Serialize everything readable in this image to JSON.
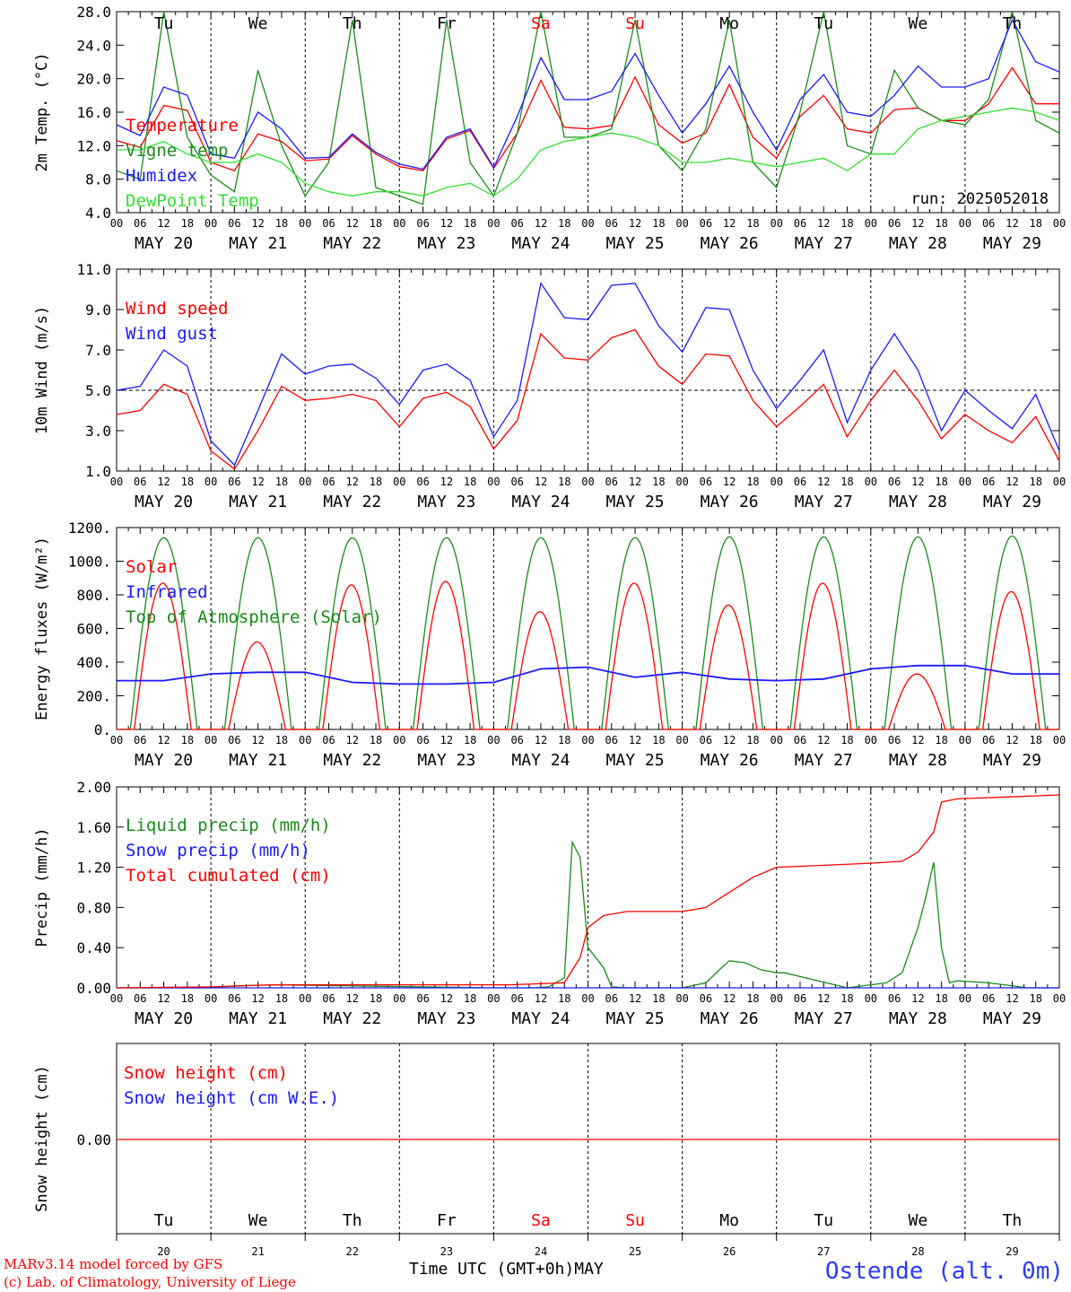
{
  "run_label": "run: 2025052018",
  "day_letters": [
    "Tu",
    "We",
    "Th",
    "Fr",
    "Sa",
    "Su",
    "Mo",
    "Tu",
    "We",
    "Th"
  ],
  "day_letter_colors": [
    "#000000",
    "#000000",
    "#000000",
    "#000000",
    "#ff0000",
    "#ff0000",
    "#000000",
    "#000000",
    "#000000",
    "#000000"
  ],
  "date_labels": [
    "MAY 20",
    "MAY 21",
    "MAY 22",
    "MAY 23",
    "MAY 24",
    "MAY 25",
    "MAY 26",
    "MAY 27",
    "MAY 28",
    "MAY 29"
  ],
  "hour_labels": [
    "00",
    "06",
    "12",
    "18"
  ],
  "end_hour_label": "00",
  "day_numbers": [
    "20",
    "21",
    "22",
    "23",
    "24",
    "25",
    "26",
    "27",
    "28",
    "29"
  ],
  "footer": {
    "credit_line1": "MARv3.14 model forced by GFS",
    "credit_line2": "(c) Lab. of Climatology, University of Liege",
    "x_axis_title": "Time UTC (GMT+0h)MAY",
    "station": "Ostende (alt. 0m)"
  },
  "colors": {
    "red": "#ff0000",
    "green": "#1a8a1a",
    "blue": "#1a1aff",
    "light_green": "#33dd33"
  },
  "chart_data": [
    {
      "type": "line",
      "ylabel": "2m Temp. (°C)",
      "ylim": [
        4,
        28
      ],
      "yticks": [
        "4.0",
        "8.0",
        "12.0",
        "16.0",
        "20.0",
        "24.0",
        "28.0"
      ],
      "x_unit": "hours since 2025-05-20 00 UTC",
      "xlim": [
        0,
        240
      ],
      "series": [
        {
          "name": "Temperature",
          "color": "#ff0000",
          "x": [
            0,
            6,
            12,
            18,
            24,
            30,
            36,
            42,
            48,
            54,
            60,
            66,
            72,
            78,
            84,
            90,
            96,
            102,
            108,
            114,
            120,
            126,
            132,
            138,
            144,
            150,
            156,
            162,
            168,
            174,
            180,
            186,
            192,
            198,
            204,
            210,
            216,
            222,
            228,
            234,
            240
          ],
          "values": [
            12.6,
            11.8,
            16.8,
            16.2,
            10.0,
            9.0,
            13.4,
            12.5,
            10.2,
            10.4,
            13.2,
            11.0,
            9.5,
            9.0,
            12.8,
            13.8,
            9.3,
            13.5,
            19.8,
            14.2,
            14.0,
            14.4,
            20.2,
            14.5,
            12.3,
            13.5,
            19.3,
            13.0,
            10.5,
            15.5,
            18.0,
            14.0,
            13.5,
            16.3,
            16.5,
            15.0,
            15.0,
            17.0,
            21.3,
            17.0,
            17.0
          ]
        },
        {
          "name": "Vigne temp",
          "color": "#1a8a1a",
          "x": [
            0,
            6,
            12,
            18,
            24,
            30,
            36,
            42,
            48,
            54,
            60,
            66,
            72,
            78,
            84,
            90,
            96,
            102,
            108,
            114,
            120,
            126,
            132,
            138,
            144,
            150,
            156,
            162,
            168,
            174,
            180,
            186,
            192,
            198,
            204,
            210,
            216,
            222,
            228,
            234,
            240
          ],
          "values": [
            9.0,
            8.0,
            28.5,
            13.0,
            8.5,
            6.5,
            21.0,
            12.0,
            6.0,
            10.0,
            27.0,
            7.0,
            6.0,
            5.0,
            27.0,
            10.0,
            6.0,
            13.5,
            28.0,
            13.0,
            13.0,
            14.0,
            27.0,
            12.0,
            9.0,
            14.0,
            27.0,
            10.0,
            7.0,
            16.0,
            28.0,
            12.0,
            11.0,
            21.0,
            16.5,
            15.0,
            14.5,
            17.5,
            28.0,
            15.0,
            13.5
          ]
        },
        {
          "name": "Humidex",
          "color": "#1a1aff",
          "x": [
            0,
            6,
            12,
            18,
            24,
            30,
            36,
            42,
            48,
            54,
            60,
            66,
            72,
            78,
            84,
            90,
            96,
            102,
            108,
            114,
            120,
            126,
            132,
            138,
            144,
            150,
            156,
            162,
            168,
            174,
            180,
            186,
            192,
            198,
            204,
            210,
            216,
            222,
            228,
            234,
            240
          ],
          "values": [
            14.5,
            13.2,
            19.0,
            18.0,
            11.0,
            10.5,
            16.0,
            14.0,
            10.5,
            10.6,
            13.4,
            11.2,
            9.8,
            9.2,
            13.0,
            14.0,
            9.4,
            15.5,
            22.5,
            17.5,
            17.5,
            18.5,
            23.0,
            18.0,
            13.5,
            17.0,
            21.5,
            16.0,
            11.5,
            17.5,
            20.5,
            16.0,
            15.5,
            18.0,
            21.5,
            19.0,
            19.0,
            20.0,
            27.0,
            22.0,
            20.8
          ]
        },
        {
          "name": "DewPoint Temp",
          "color": "#33dd33",
          "x": [
            0,
            6,
            12,
            18,
            24,
            30,
            36,
            42,
            48,
            54,
            60,
            66,
            72,
            78,
            84,
            90,
            96,
            102,
            108,
            114,
            120,
            126,
            132,
            138,
            144,
            150,
            156,
            162,
            168,
            174,
            180,
            186,
            192,
            198,
            204,
            210,
            216,
            222,
            228,
            234,
            240
          ],
          "values": [
            11.5,
            11.5,
            12.5,
            11.0,
            10.0,
            10.0,
            11.0,
            10.0,
            7.5,
            6.5,
            6.0,
            6.5,
            6.5,
            6.0,
            7.0,
            7.5,
            6.0,
            8.0,
            11.5,
            12.5,
            13.0,
            13.5,
            13.0,
            12.0,
            10.0,
            10.0,
            10.5,
            10.0,
            9.5,
            10.0,
            10.5,
            9.0,
            11.0,
            11.0,
            14.0,
            15.0,
            15.5,
            16.0,
            16.5,
            16.0,
            15.0
          ]
        }
      ]
    },
    {
      "type": "line",
      "ylabel": "10m Wind (m/s)",
      "ylim": [
        1,
        11
      ],
      "yticks": [
        "1.0",
        "3.0",
        "5.0",
        "7.0",
        "9.0",
        "11.0"
      ],
      "reference_line": 5.0,
      "x_unit": "hours since 2025-05-20 00 UTC",
      "series": [
        {
          "name": "Wind speed",
          "color": "#ff0000",
          "x": [
            0,
            6,
            12,
            18,
            24,
            30,
            36,
            42,
            48,
            54,
            60,
            66,
            72,
            78,
            84,
            90,
            96,
            102,
            108,
            114,
            120,
            126,
            132,
            138,
            144,
            150,
            156,
            162,
            168,
            174,
            180,
            186,
            192,
            198,
            204,
            210,
            216,
            222,
            228,
            234,
            240
          ],
          "values": [
            3.8,
            4.0,
            5.3,
            4.8,
            2.0,
            1.1,
            3.0,
            5.2,
            4.5,
            4.6,
            4.8,
            4.5,
            3.2,
            4.6,
            4.9,
            4.2,
            2.1,
            3.5,
            7.8,
            6.6,
            6.5,
            7.6,
            8.0,
            6.2,
            5.3,
            6.8,
            6.7,
            4.5,
            3.2,
            4.2,
            5.3,
            2.7,
            4.5,
            6.0,
            4.5,
            2.6,
            3.8,
            3.0,
            2.4,
            3.7,
            1.5
          ]
        },
        {
          "name": "Wind gust",
          "color": "#1a1aff",
          "x": [
            0,
            6,
            12,
            18,
            24,
            30,
            36,
            42,
            48,
            54,
            60,
            66,
            72,
            78,
            84,
            90,
            96,
            102,
            108,
            114,
            120,
            126,
            132,
            138,
            144,
            150,
            156,
            162,
            168,
            174,
            180,
            186,
            192,
            198,
            204,
            210,
            216,
            222,
            228,
            234,
            240
          ],
          "values": [
            5.0,
            5.2,
            7.0,
            6.2,
            2.5,
            1.3,
            4.0,
            6.8,
            5.8,
            6.2,
            6.3,
            5.6,
            4.3,
            6.0,
            6.3,
            5.5,
            2.7,
            4.5,
            10.3,
            8.6,
            8.5,
            10.2,
            10.3,
            8.2,
            6.9,
            9.1,
            9.0,
            6.0,
            4.1,
            5.5,
            7.0,
            3.4,
            6.0,
            7.8,
            6.0,
            3.0,
            5.0,
            4.0,
            3.1,
            4.8,
            2.0
          ]
        }
      ]
    },
    {
      "type": "line",
      "ylabel": "Energy fluxes (W/m²)",
      "ylim": [
        0,
        1200
      ],
      "yticks": [
        "0.",
        "200.",
        "400.",
        "600.",
        "800.",
        "1000.",
        "1200."
      ],
      "x_unit": "hours since 2025-05-20 00 UTC",
      "series": [
        {
          "name": "Solar",
          "color": "#ff0000",
          "daily_peaks": [
            870,
            520,
            860,
            880,
            700,
            870,
            740,
            870,
            330,
            820
          ]
        },
        {
          "name": "Infrared",
          "color": "#1a1aff",
          "x": [
            0,
            12,
            24,
            36,
            48,
            60,
            72,
            84,
            96,
            108,
            120,
            132,
            144,
            156,
            168,
            180,
            192,
            204,
            216,
            228,
            240
          ],
          "values": [
            290,
            290,
            330,
            340,
            340,
            280,
            270,
            270,
            280,
            360,
            370,
            310,
            340,
            300,
            290,
            300,
            360,
            380,
            380,
            330,
            330
          ]
        },
        {
          "name": "Top of Atmosphere (Solar)",
          "color": "#1a8a1a",
          "daily_peaks": [
            1140,
            1140,
            1140,
            1140,
            1140,
            1140,
            1145,
            1145,
            1145,
            1150
          ]
        }
      ]
    },
    {
      "type": "line",
      "ylabel": "Precip (mm/h)",
      "ylim": [
        0,
        2
      ],
      "yticks": [
        "0.00",
        "0.40",
        "0.80",
        "1.20",
        "1.60",
        "2.00"
      ],
      "x_unit": "hours since 2025-05-20 00 UTC",
      "series": [
        {
          "name": "Liquid precip (mm/h)",
          "color": "#1a8a1a",
          "x": [
            0,
            24,
            30,
            40,
            96,
            106,
            110,
            114,
            116,
            118,
            120,
            124,
            126,
            130,
            144,
            150,
            154,
            156,
            160,
            164,
            168,
            170,
            186,
            196,
            200,
            204,
            206,
            208,
            210,
            212,
            214,
            222,
            232,
            240
          ],
          "values": [
            0,
            0,
            0.02,
            0.03,
            0,
            0,
            0.01,
            0.1,
            1.45,
            1.3,
            0.4,
            0.2,
            0.01,
            0,
            0,
            0.05,
            0.2,
            0.27,
            0.25,
            0.18,
            0.15,
            0.15,
            0,
            0.05,
            0.15,
            0.6,
            0.9,
            1.25,
            0.4,
            0.05,
            0.07,
            0.05,
            0,
            0
          ]
        },
        {
          "name": "Snow precip (mm/h)",
          "color": "#1a1aff",
          "x": [
            0,
            240
          ],
          "values": [
            0,
            0
          ]
        },
        {
          "name": "Total cumulated (cm)",
          "color": "#ff0000",
          "x": [
            0,
            24,
            40,
            100,
            114,
            118,
            120,
            124,
            130,
            144,
            150,
            156,
            162,
            168,
            180,
            192,
            200,
            204,
            208,
            210,
            214,
            240
          ],
          "values": [
            0,
            0.01,
            0.03,
            0.03,
            0.05,
            0.3,
            0.6,
            0.72,
            0.76,
            0.76,
            0.8,
            0.95,
            1.1,
            1.2,
            1.22,
            1.24,
            1.26,
            1.35,
            1.55,
            1.85,
            1.88,
            1.92
          ]
        }
      ]
    },
    {
      "type": "line",
      "ylabel": "Snow height (cm)",
      "yticks": [
        "0.00"
      ],
      "x_unit": "hours since 2025-05-20 00 UTC",
      "series": [
        {
          "name": "Snow height (cm)",
          "color": "#ff0000",
          "x": [
            0,
            240
          ],
          "values": [
            0,
            0
          ]
        },
        {
          "name": "Snow height (cm W.E.)",
          "color": "#1a1aff",
          "x": [
            0,
            240
          ],
          "values": [
            0,
            0
          ]
        }
      ]
    }
  ]
}
